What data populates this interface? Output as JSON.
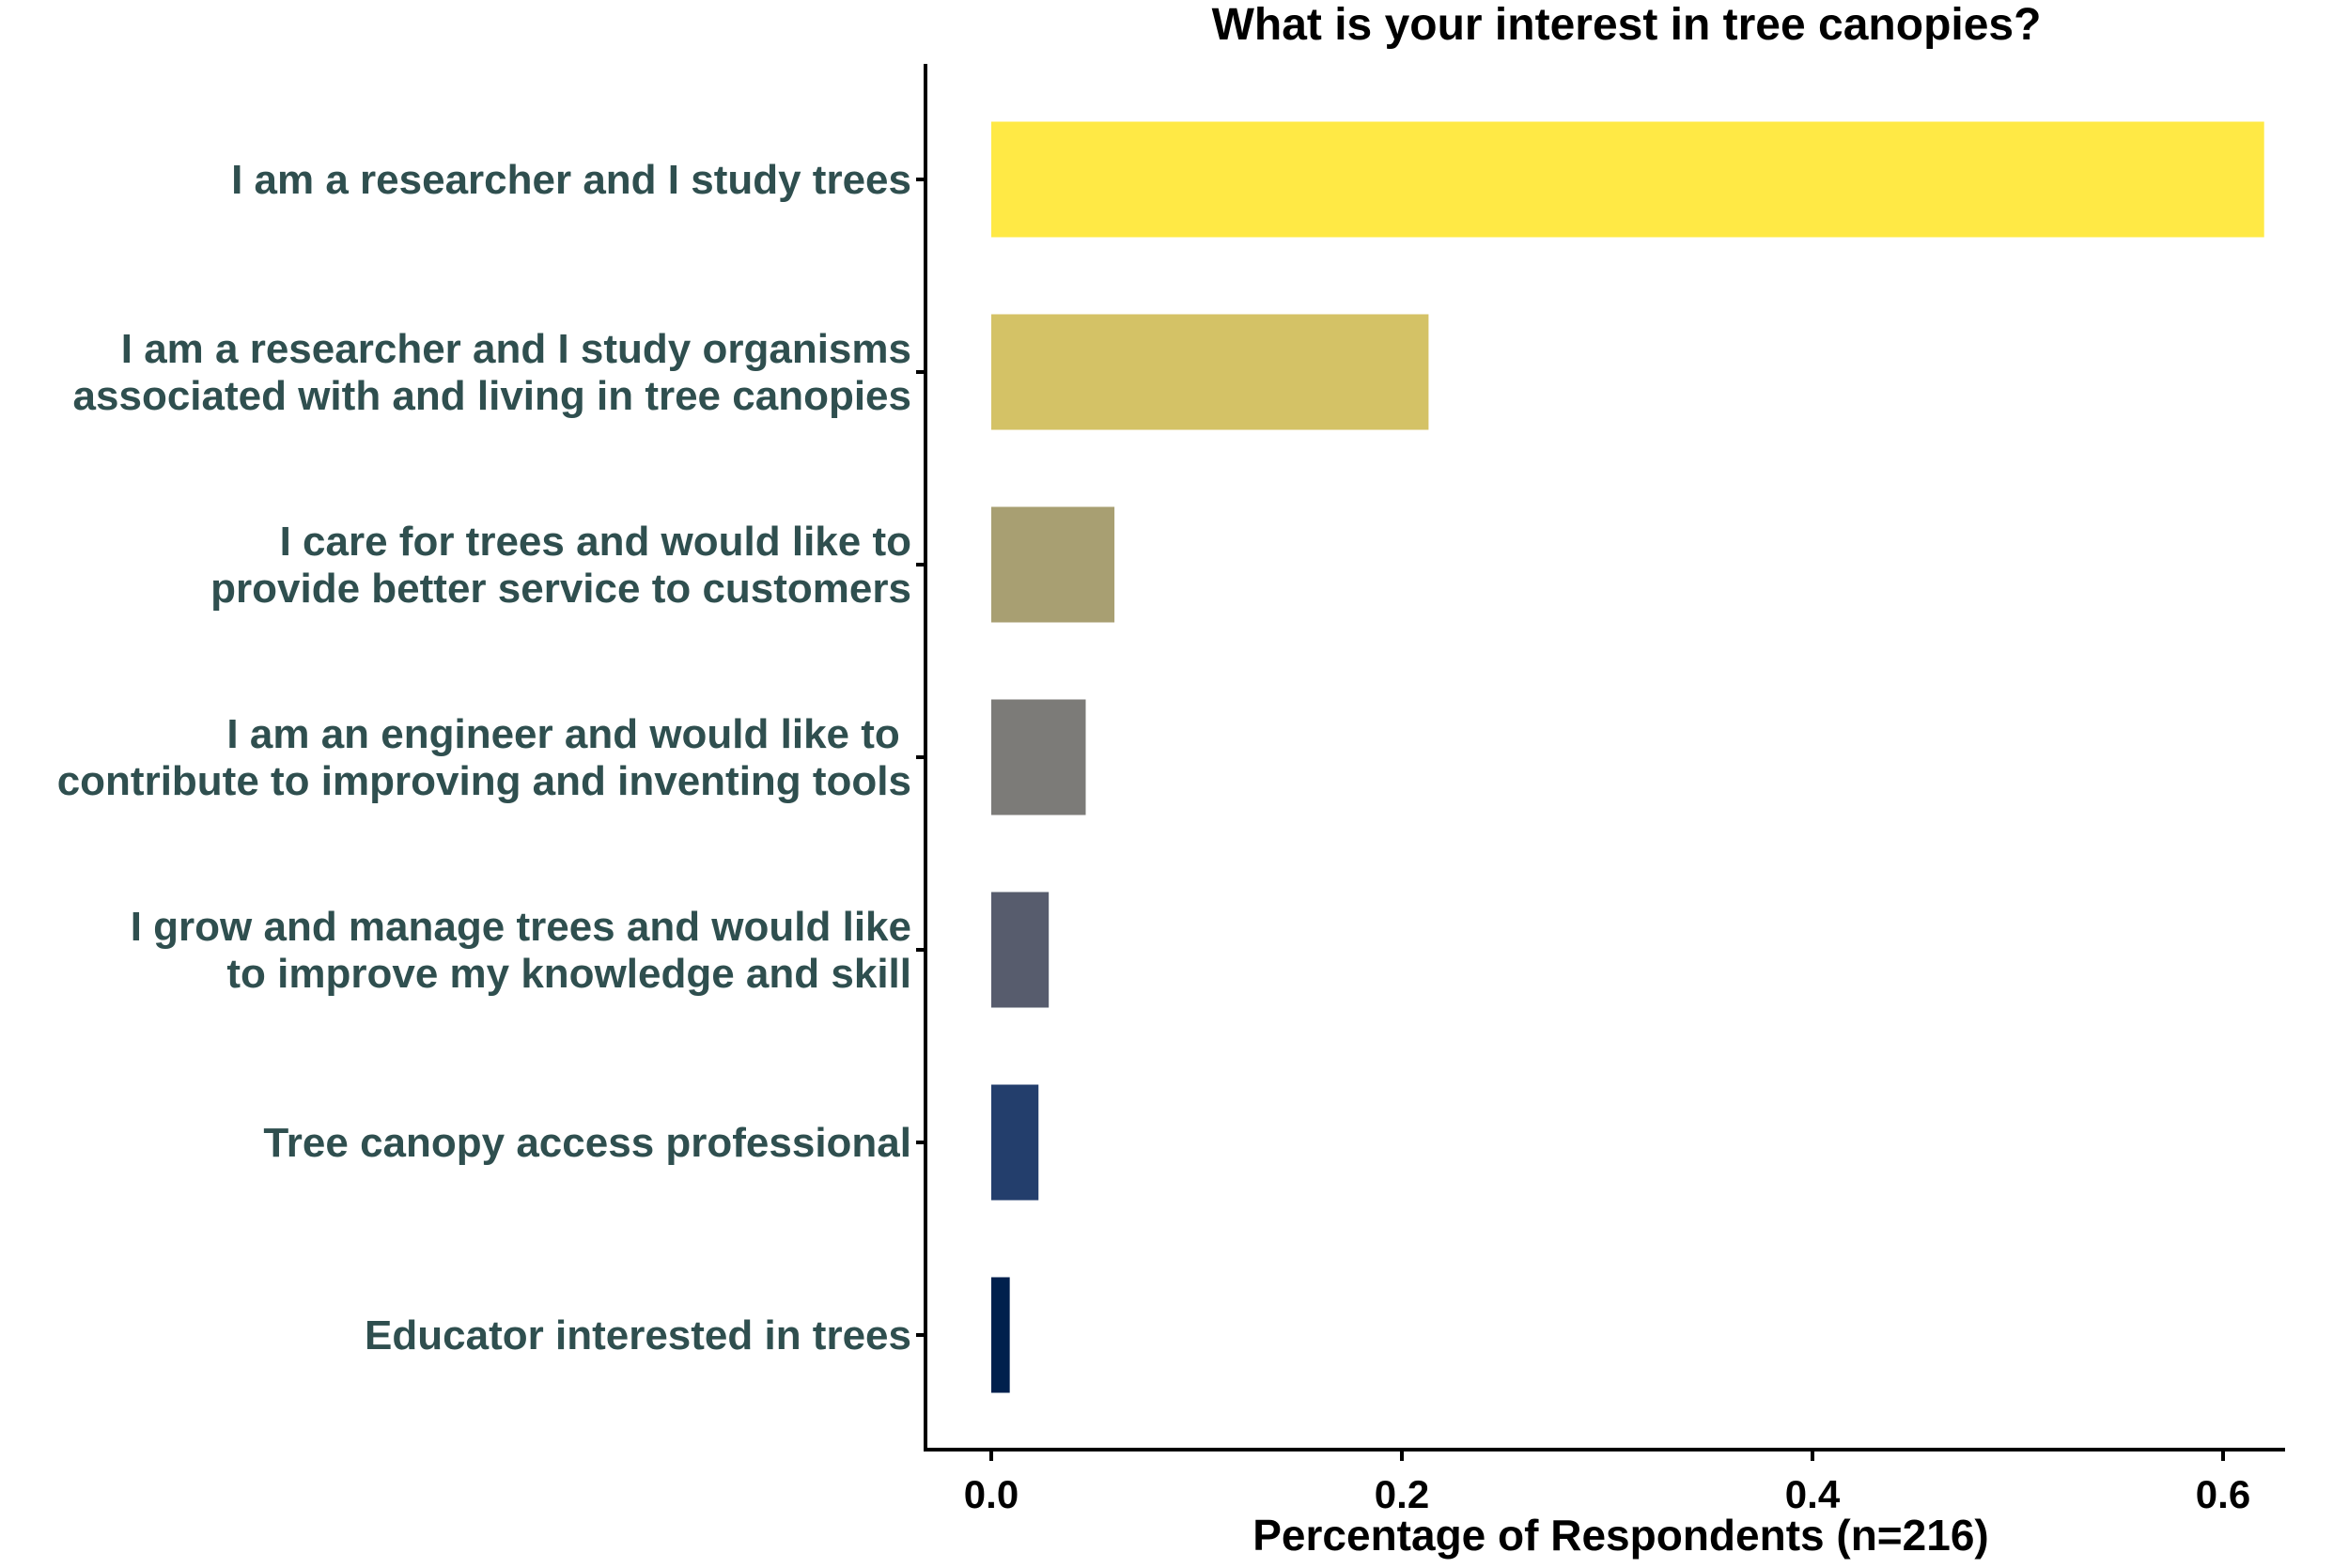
{
  "chart_data": {
    "type": "bar",
    "orientation": "horizontal",
    "title": "What is your interest in tree canopies?",
    "xlabel": "Percentage of Respondents (n=216)",
    "ylabel": "",
    "xlim": [
      -0.03,
      0.645
    ],
    "xticks": [
      0.0,
      0.2,
      0.4,
      0.6
    ],
    "xtick_labels": [
      "0.0",
      "0.2",
      "0.4",
      "0.6"
    ],
    "grid": false,
    "legend": "none",
    "categories": [
      [
        "I am a researcher and I study trees"
      ],
      [
        "I am a researcher and I study organisms",
        "associated with and living in tree canopies"
      ],
      [
        "I care for trees and would like to",
        "provide better service to customers"
      ],
      [
        "I am an engineer and would like to ",
        "contribute to improving and inventing tools"
      ],
      [
        "I grow and manage trees and would like",
        "to improve my knowledge and skill"
      ],
      [
        "Tree canopy access professional"
      ],
      [
        "Educator interested in trees"
      ]
    ],
    "values": [
      0.62,
      0.213,
      0.06,
      0.046,
      0.028,
      0.023,
      0.009
    ],
    "colors": [
      "#FFE945",
      "#D4C266",
      "#A89F72",
      "#7C7B78",
      "#575C6D",
      "#233E6C",
      "#00204D"
    ]
  }
}
